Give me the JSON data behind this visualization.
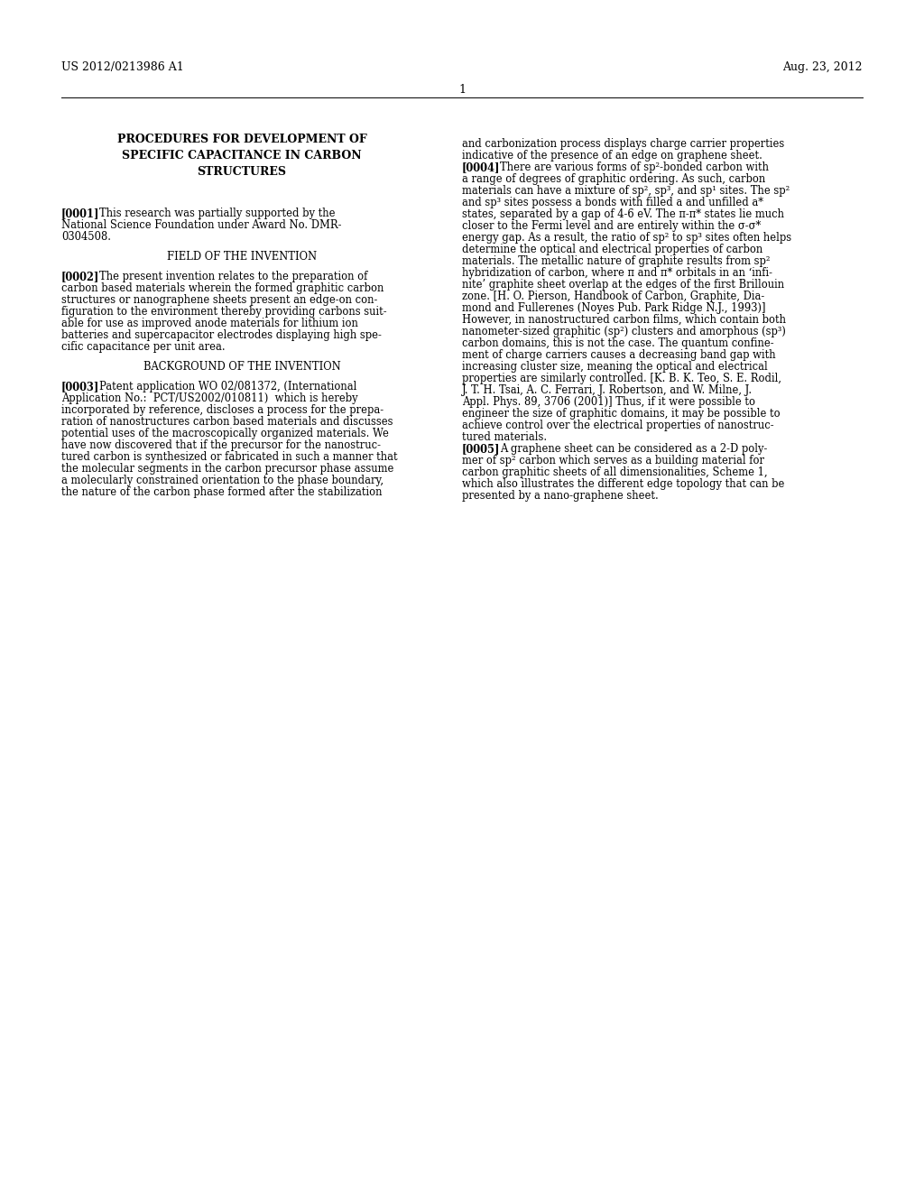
{
  "background_color": "#ffffff",
  "header_left": "US 2012/0213986 A1",
  "header_right": "Aug. 23, 2012",
  "header_center": "1",
  "title_lines": [
    "PROCEDURES FOR DEVELOPMENT OF",
    "SPECIFIC CAPACITANCE IN CARBON",
    "STRUCTURES"
  ],
  "left_col_lines": [
    {
      "type": "tag",
      "tag": "[0001]",
      "text": "This research was partially supported by the"
    },
    {
      "type": "body",
      "text": "National Science Foundation under Award No. DMR-"
    },
    {
      "type": "body",
      "text": "0304508."
    },
    {
      "type": "blank"
    },
    {
      "type": "center",
      "text": "FIELD OF THE INVENTION"
    },
    {
      "type": "blank"
    },
    {
      "type": "tag",
      "tag": "[0002]",
      "text": "The present invention relates to the preparation of"
    },
    {
      "type": "body",
      "text": "carbon based materials wherein the formed graphitic carbon"
    },
    {
      "type": "body",
      "text": "structures or nanographene sheets present an edge-on con-"
    },
    {
      "type": "body",
      "text": "figuration to the environment thereby providing carbons suit-"
    },
    {
      "type": "body",
      "text": "able for use as improved anode materials for lithium ion"
    },
    {
      "type": "body",
      "text": "batteries and supercapacitor electrodes displaying high spe-"
    },
    {
      "type": "body",
      "text": "cific capacitance per unit area."
    },
    {
      "type": "blank"
    },
    {
      "type": "center",
      "text": "BACKGROUND OF THE INVENTION"
    },
    {
      "type": "blank"
    },
    {
      "type": "tag",
      "tag": "[0003]",
      "text": "Patent application WO 02/081372, (International"
    },
    {
      "type": "body",
      "text": "Application No.:  PCT/US2002/010811)  which is hereby"
    },
    {
      "type": "body",
      "text": "incorporated by reference, discloses a process for the prepa-"
    },
    {
      "type": "body",
      "text": "ration of nanostructures carbon based materials and discusses"
    },
    {
      "type": "body",
      "text": "potential uses of the macroscopically organized materials. We"
    },
    {
      "type": "body",
      "text": "have now discovered that if the precursor for the nanostruc-"
    },
    {
      "type": "body",
      "text": "tured carbon is synthesized or fabricated in such a manner that"
    },
    {
      "type": "body",
      "text": "the molecular segments in the carbon precursor phase assume"
    },
    {
      "type": "body",
      "text": "a molecularly constrained orientation to the phase boundary,"
    },
    {
      "type": "body",
      "text": "the nature of the carbon phase formed after the stabilization"
    }
  ],
  "right_col_lines": [
    {
      "type": "body",
      "text": "and carbonization process displays charge carrier properties"
    },
    {
      "type": "body",
      "text": "indicative of the presence of an edge on graphene sheet."
    },
    {
      "type": "tag",
      "tag": "[0004]",
      "text": "There are various forms of sp²-bonded carbon with"
    },
    {
      "type": "body",
      "text": "a range of degrees of graphitic ordering. As such, carbon"
    },
    {
      "type": "body",
      "text": "materials can have a mixture of sp², sp³, and sp¹ sites. The sp²"
    },
    {
      "type": "body",
      "text": "and sp³ sites possess a bonds with filled a and unfilled a*"
    },
    {
      "type": "body",
      "text": "states, separated by a gap of 4-6 eV. The π-π* states lie much"
    },
    {
      "type": "body",
      "text": "closer to the Fermi level and are entirely within the σ-σ*"
    },
    {
      "type": "body",
      "text": "energy gap. As a result, the ratio of sp² to sp³ sites often helps"
    },
    {
      "type": "body",
      "text": "determine the optical and electrical properties of carbon"
    },
    {
      "type": "body",
      "text": "materials. The metallic nature of graphite results from sp²"
    },
    {
      "type": "body",
      "text": "hybridization of carbon, where π and π* orbitals in an ‘infi-"
    },
    {
      "type": "body",
      "text": "nite’ graphite sheet overlap at the edges of the first Brillouin"
    },
    {
      "type": "body",
      "text": "zone. [H. O. Pierson, Handbook of Carbon, Graphite, Dia-"
    },
    {
      "type": "body",
      "text": "mond and Fullerenes (Noyes Pub. Park Ridge N.J., 1993)]"
    },
    {
      "type": "body",
      "text": "However, in nanostructured carbon films, which contain both"
    },
    {
      "type": "body",
      "text": "nanometer-sized graphitic (sp²) clusters and amorphous (sp³)"
    },
    {
      "type": "body",
      "text": "carbon domains, this is not the case. The quantum confine-"
    },
    {
      "type": "body",
      "text": "ment of charge carriers causes a decreasing band gap with"
    },
    {
      "type": "body",
      "text": "increasing cluster size, meaning the optical and electrical"
    },
    {
      "type": "body",
      "text": "properties are similarly controlled. [K. B. K. Teo, S. E. Rodil,"
    },
    {
      "type": "body",
      "text": "J. T. H. Tsai, A. C. Ferrari, J. Robertson, and W. Milne, J."
    },
    {
      "type": "body",
      "text": "Appl. Phys. 89, 3706 (2001)] Thus, if it were possible to"
    },
    {
      "type": "body",
      "text": "engineer the size of graphitic domains, it may be possible to"
    },
    {
      "type": "body",
      "text": "achieve control over the electrical properties of nanostruc-"
    },
    {
      "type": "body",
      "text": "tured materials."
    },
    {
      "type": "tag",
      "tag": "[0005]",
      "text": "A graphene sheet can be considered as a 2-D poly-"
    },
    {
      "type": "body",
      "text": "mer of sp² carbon which serves as a building material for"
    },
    {
      "type": "body",
      "text": "carbon graphitic sheets of all dimensionalities, Scheme 1,"
    },
    {
      "type": "body",
      "text": "which also illustrates the different edge topology that can be"
    },
    {
      "type": "body",
      "text": "presented by a nano-graphene sheet."
    }
  ]
}
